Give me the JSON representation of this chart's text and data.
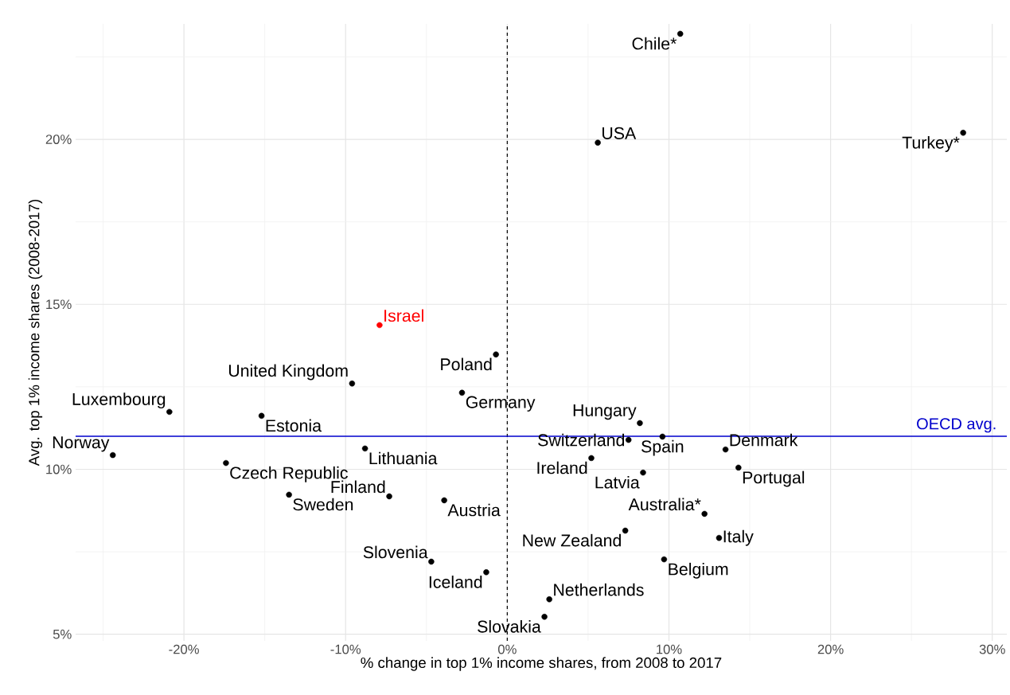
{
  "chart_data": {
    "type": "scatter",
    "xlabel": "% change in top 1% income shares, from 2008 to 2017",
    "ylabel": "Avg. top 1% income shares (2008-2017)",
    "xlim": [
      -26.7,
      30.9
    ],
    "ylim": [
      4.8,
      23.5
    ],
    "xticks": [
      {
        "value": -25,
        "label": null
      },
      {
        "value": -20,
        "label": "-20%"
      },
      {
        "value": -15,
        "label": null
      },
      {
        "value": -10,
        "label": "-10%"
      },
      {
        "value": -5,
        "label": null
      },
      {
        "value": 0,
        "label": "0%"
      },
      {
        "value": 5,
        "label": null
      },
      {
        "value": 10,
        "label": "10%"
      },
      {
        "value": 15,
        "label": null
      },
      {
        "value": 20,
        "label": "20%"
      },
      {
        "value": 25,
        "label": null
      },
      {
        "value": 30,
        "label": "30%"
      }
    ],
    "yticks": [
      {
        "value": 5,
        "label": "5%"
      },
      {
        "value": 7.5,
        "label": null
      },
      {
        "value": 10,
        "label": "10%"
      },
      {
        "value": 12.5,
        "label": null
      },
      {
        "value": 15,
        "label": "15%"
      },
      {
        "value": 17.5,
        "label": null
      },
      {
        "value": 20,
        "label": "20%"
      },
      {
        "value": 22.5,
        "label": null
      }
    ],
    "grid": true,
    "marker": "circle",
    "series": [
      {
        "x": [
          10.7,
          5.6,
          28.2,
          -7.9,
          -0.7,
          -9.6,
          -2.8,
          -20.9,
          -15.2,
          -24.4,
          -17.4,
          -8.8,
          -13.5,
          -7.3,
          -3.9,
          -4.7,
          -1.3,
          2.3,
          2.6,
          5.2,
          8.2,
          7.5,
          9.6,
          8.4,
          13.5,
          14.3,
          12.2,
          13.1,
          7.3,
          9.7
        ],
        "values": [
          23.2,
          19.9,
          20.2,
          14.37,
          13.48,
          12.6,
          12.32,
          11.74,
          11.62,
          10.43,
          10.19,
          10.63,
          9.23,
          9.18,
          9.06,
          7.2,
          6.88,
          5.53,
          6.06,
          10.34,
          11.4,
          10.89,
          10.99,
          9.9,
          10.6,
          10.05,
          8.65,
          7.92,
          8.14,
          7.27
        ],
        "colors": [
          "#000000",
          "#000000",
          "#000000",
          "#ff0000",
          "#000000",
          "#000000",
          "#000000",
          "#000000",
          "#000000",
          "#000000",
          "#000000",
          "#000000",
          "#000000",
          "#000000",
          "#000000",
          "#000000",
          "#000000",
          "#000000",
          "#000000",
          "#000000",
          "#000000",
          "#000000",
          "#000000",
          "#000000",
          "#000000",
          "#000000",
          "#000000",
          "#000000",
          "#000000",
          "#000000"
        ]
      }
    ],
    "ref_lines": [
      {
        "axis": "x",
        "value": 0,
        "color": "#000000",
        "line_style": "dashed"
      },
      {
        "axis": "y",
        "value": 11.0,
        "label": "OECD avg.",
        "color": "#0000cc",
        "line_style": "solid"
      }
    ],
    "annotations": [
      {
        "text": "Chile*",
        "x": 10.7,
        "y": 23.2
      },
      {
        "text": "USA",
        "x": 5.6,
        "y": 19.9
      },
      {
        "text": "Turkey*",
        "x": 28.2,
        "y": 20.2
      },
      {
        "text": "Israel",
        "x": -7.9,
        "y": 14.37
      },
      {
        "text": "Poland",
        "x": -0.7,
        "y": 13.48
      },
      {
        "text": "United Kingdom",
        "x": -9.6,
        "y": 12.6
      },
      {
        "text": "Germany",
        "x": -2.8,
        "y": 12.32
      },
      {
        "text": "Luxembourg",
        "x": -20.9,
        "y": 11.74
      },
      {
        "text": "Estonia",
        "x": -15.2,
        "y": 11.62
      },
      {
        "text": "Norway",
        "x": -24.4,
        "y": 10.43
      },
      {
        "text": "Czech Republic",
        "x": -17.4,
        "y": 10.19
      },
      {
        "text": "Lithuania",
        "x": -8.8,
        "y": 10.63
      },
      {
        "text": "Sweden",
        "x": -13.5,
        "y": 9.23
      },
      {
        "text": "Finland",
        "x": -7.3,
        "y": 9.18
      },
      {
        "text": "Austria",
        "x": -3.9,
        "y": 9.06
      },
      {
        "text": "Slovenia",
        "x": -4.7,
        "y": 7.2
      },
      {
        "text": "Iceland",
        "x": -1.3,
        "y": 6.88
      },
      {
        "text": "Slovakia",
        "x": 2.3,
        "y": 5.53
      },
      {
        "text": "Netherlands",
        "x": 2.6,
        "y": 6.06
      },
      {
        "text": "Ireland",
        "x": 5.2,
        "y": 10.34
      },
      {
        "text": "Hungary",
        "x": 8.2,
        "y": 11.4
      },
      {
        "text": "Switzerland",
        "x": 7.5,
        "y": 10.89
      },
      {
        "text": "Spain",
        "x": 9.6,
        "y": 10.99
      },
      {
        "text": "Latvia",
        "x": 8.4,
        "y": 9.9
      },
      {
        "text": "Denmark",
        "x": 13.5,
        "y": 10.6
      },
      {
        "text": "Portugal",
        "x": 14.3,
        "y": 10.05
      },
      {
        "text": "Australia*",
        "x": 12.2,
        "y": 8.65
      },
      {
        "text": "Italy",
        "x": 13.1,
        "y": 7.92
      },
      {
        "text": "New Zealand",
        "x": 7.3,
        "y": 8.14
      },
      {
        "text": "Belgium",
        "x": 9.7,
        "y": 7.27
      }
    ]
  }
}
